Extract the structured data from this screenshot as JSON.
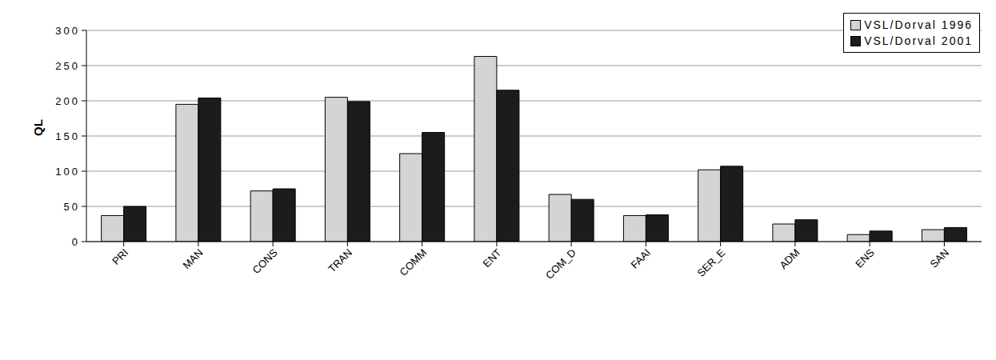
{
  "chart_data": {
    "type": "bar",
    "y_label": "QL",
    "categories": [
      "PRI",
      "MAN",
      "CONS",
      "TRAN",
      "COMM",
      "ENT",
      "COM_D",
      "FAAI",
      "SER_E",
      "ADM",
      "ENS",
      "SAN"
    ],
    "series": [
      {
        "name": "VSL/Dorval 1996",
        "color": "#d4d4d4",
        "values": [
          37,
          195,
          72,
          205,
          125,
          263,
          67,
          37,
          102,
          25,
          10,
          17
        ]
      },
      {
        "name": "VSL/Dorval 2001",
        "color": "#1c1c1c",
        "values": [
          50,
          204,
          75,
          199,
          155,
          215,
          60,
          38,
          107,
          31,
          15,
          20
        ]
      }
    ],
    "ylim": [
      0,
      300
    ],
    "yticks": [
      0,
      50,
      100,
      150,
      200,
      250,
      300
    ],
    "grid": true,
    "legend": "top-right"
  }
}
